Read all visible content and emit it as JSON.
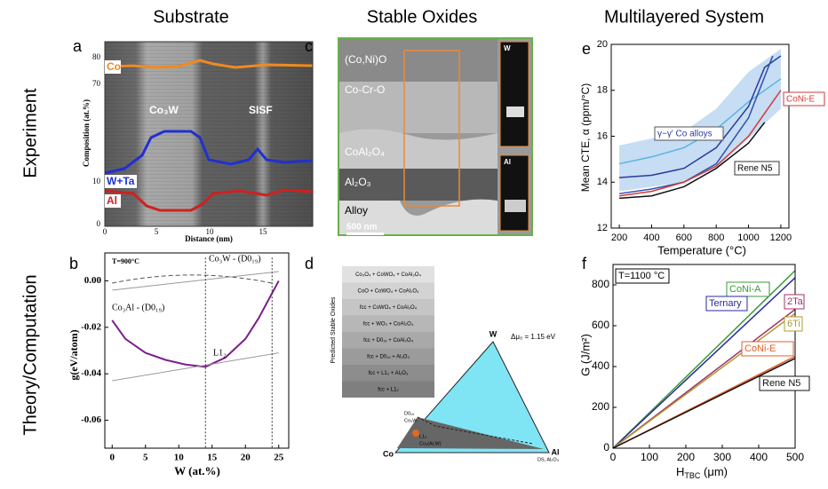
{
  "columns": [
    "Substrate",
    "Stable Oxides",
    "Multilayered System"
  ],
  "rows": [
    "Experiment",
    "Theory/Computation"
  ],
  "panels": {
    "a": {
      "letter": "a",
      "y_label": "Composition (at.%)",
      "x_label": "Distance (nm)",
      "xticks": [
        0,
        5,
        10,
        15
      ],
      "yticks": [
        80,
        70,
        10,
        0
      ],
      "labels": [
        "Co",
        "Co₃W",
        "SISF",
        "W+Ta",
        "Al"
      ]
    },
    "b": {
      "letter": "b",
      "y_label": "g(eV/atom)",
      "x_label": "W (at.%)",
      "xlim": [
        -1.1,
        26.5
      ],
      "ylim": [
        -0.072,
        0.012
      ],
      "xticks": [
        0,
        5,
        10,
        15,
        20,
        25
      ],
      "yticks": [
        {
          "value": 0,
          "label": "0.00"
        },
        {
          "value": -0.02,
          "label": "-0.02"
        },
        {
          "value": -0.04,
          "label": "-0.04"
        },
        {
          "value": -0.06,
          "label": "-0.06"
        }
      ],
      "annotations": [
        "T=900°C",
        "Co₃W - (D0₁₉)",
        "Co₃Al - (D0₁₉)",
        "L1₂"
      ],
      "series": [
        {
          "color": "#7b1f8a",
          "x": [
            0,
            2,
            5,
            8,
            11,
            14,
            17,
            20,
            22,
            23.5,
            25
          ],
          "values": [
            -0.017,
            -0.025,
            -0.031,
            -0.034,
            -0.036,
            -0.037,
            -0.033,
            -0.025,
            -0.016,
            -0.008,
            0.0
          ]
        }
      ]
    },
    "c": {
      "letter": "c",
      "labels": [
        "(Co,Ni)O",
        "Co-Cr-O",
        "CoAl₂O₄",
        "Al₂O₃",
        "Alloy"
      ],
      "scale": "500 nm",
      "insets": [
        "W",
        "Al"
      ]
    },
    "d": {
      "letter": "d",
      "list_title": "Predicted Stable Oxides",
      "phases": [
        "Co₃O₄ + CoWO₄ + CoAl₂O₄",
        "CoO + CoWO₄ + CoAl₂O₄",
        "fcc + CoWO₄ + CoAl₂O₄",
        "fcc + WO₃ + CoAl₂O₄",
        "fcc + D0₁₉ + CoAl₂O₄",
        "fcc + D0₁₉ + Al₂O₃",
        "fcc + L1₂ + Al₂O₃",
        "fcc + L1₂"
      ],
      "delta": "Δμ₀ = 1.15 eV",
      "vertices": [
        "W",
        "Co",
        "Al"
      ],
      "small_labels": [
        "D0₁₉",
        "Co₃W",
        "L1₂",
        "Co₃(Al,W)",
        "DS, Al₂O₃"
      ]
    },
    "e": {
      "letter": "e",
      "y_label": "Mean CTE, α (ppm/°C)",
      "x_label": "Temperature (°C)",
      "xlim": [
        150,
        1250
      ],
      "ylim": [
        12,
        20
      ],
      "xticks": [
        200,
        400,
        600,
        800,
        1000,
        1200
      ],
      "yticks": [
        12,
        14,
        16,
        18,
        20
      ],
      "annotations": [
        "γ−γ' Co alloys"
      ],
      "series": [
        {
          "color": "#5ab4e0",
          "x": [
            200,
            400,
            600,
            800,
            1000,
            1200
          ],
          "values": [
            14.8,
            15.1,
            15.5,
            16.3,
            17.5,
            18.5
          ]
        },
        {
          "color": "#2a3a9a",
          "x": [
            200,
            400,
            600,
            800,
            1000,
            1100,
            1200
          ],
          "values": [
            14.2,
            14.3,
            14.6,
            15.5,
            17.3,
            19.0,
            19.5
          ]
        },
        {
          "color": "#3050b0",
          "x": [
            200,
            400,
            600,
            800,
            1000,
            1150
          ],
          "values": [
            13.5,
            13.7,
            14.0,
            14.8,
            16.8,
            19.5
          ]
        },
        {
          "name": "CoNi-E",
          "color": "#d23a3a",
          "x": [
            200,
            400,
            600,
            800,
            1000,
            1200
          ],
          "values": [
            13.4,
            13.6,
            14.0,
            14.7,
            16.0,
            18.0
          ]
        },
        {
          "name": "Rene N5",
          "color": "#111111",
          "x": [
            200,
            400,
            600,
            800,
            1000,
            1100
          ],
          "values": [
            13.3,
            13.4,
            13.8,
            14.6,
            15.7,
            16.6
          ]
        }
      ]
    },
    "f": {
      "letter": "f",
      "y_label": "G (J/m²)",
      "x_label": {
        "main": "H",
        "sub": "TBC",
        "unit": " (μm)"
      },
      "xlim": [
        0,
        500
      ],
      "ylim": [
        0,
        900
      ],
      "xticks": [
        0,
        100,
        200,
        300,
        400,
        500
      ],
      "yticks": [
        0,
        200,
        400,
        600,
        800
      ],
      "annotations": [
        "T=1100 °C"
      ],
      "series": [
        {
          "name": "CoNi-A",
          "color": "#3a9a3a",
          "x": [
            0,
            500
          ],
          "values": [
            0,
            870
          ]
        },
        {
          "name": "Ternary",
          "color": "#2a2a9a",
          "x": [
            0,
            500
          ],
          "values": [
            0,
            835
          ]
        },
        {
          "name": "2Ta",
          "color": "#a0306a",
          "x": [
            0,
            500
          ],
          "values": [
            0,
            680
          ]
        },
        {
          "name": "6Ti",
          "color": "#b09a30",
          "x": [
            0,
            500
          ],
          "values": [
            0,
            660
          ]
        },
        {
          "name": "CoNi-E",
          "color": "#e0602a",
          "x": [
            0,
            500
          ],
          "values": [
            0,
            450
          ]
        },
        {
          "name": "Rene N5",
          "color": "#111111",
          "x": [
            0,
            500
          ],
          "values": [
            0,
            440
          ]
        }
      ]
    }
  }
}
